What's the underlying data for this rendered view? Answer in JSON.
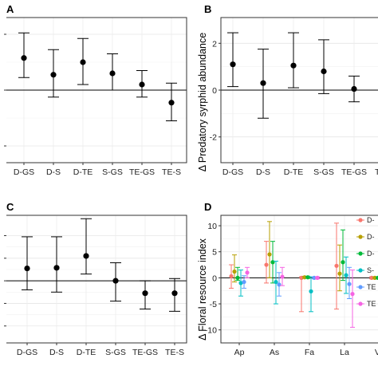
{
  "figure": {
    "panels": [
      "A",
      "B",
      "C",
      "D"
    ]
  },
  "chart_data": [
    {
      "panel": "A",
      "type": "scatter",
      "subtype": "point-with-errorbars",
      "categories": [
        "D-GS",
        "D-S",
        "D-TE",
        "S-GS",
        "TE-GS",
        "TE-S"
      ],
      "values": [
        1.15,
        0.55,
        1.0,
        0.6,
        0.2,
        -0.45
      ],
      "lower": [
        0.45,
        -0.25,
        0.2,
        0.0,
        -0.25,
        -1.1
      ],
      "upper": [
        2.05,
        1.45,
        1.85,
        1.3,
        0.7,
        0.25
      ],
      "ylim": [
        -2.6,
        2.6
      ],
      "yticks": [
        -2,
        0,
        2
      ],
      "reference_line": 0,
      "grid": true
    },
    {
      "panel": "B",
      "type": "scatter",
      "subtype": "point-with-errorbars",
      "categories": [
        "D-GS",
        "D-S",
        "D-TE",
        "S-GS",
        "TE-GS",
        "TE-S"
      ],
      "values": [
        1.1,
        0.3,
        1.05,
        0.8,
        0.05,
        -0.7
      ],
      "lower": [
        0.15,
        -1.2,
        0.1,
        -0.15,
        -0.5,
        -2.2
      ],
      "upper": [
        2.45,
        1.75,
        2.45,
        2.15,
        0.6,
        0.1
      ],
      "ylim": [
        -3.1,
        3.1
      ],
      "yticks": [
        -2,
        0,
        2
      ],
      "ytick_labels": [
        "-2",
        "0",
        "2"
      ],
      "ylabel": "Δ Predatory syrphid abundance",
      "reference_line": 0,
      "grid": true
    },
    {
      "panel": "C",
      "type": "scatter",
      "subtype": "point-with-errorbars",
      "categories": [
        "D-GS",
        "D-S",
        "D-TE",
        "S-GS",
        "TE-GS",
        "TE-S"
      ],
      "values": [
        1.1,
        1.15,
        2.2,
        0.0,
        -1.1,
        -1.1
      ],
      "lower": [
        -0.8,
        -1.0,
        0.6,
        -1.8,
        -2.5,
        -2.7
      ],
      "upper": [
        3.9,
        3.9,
        5.5,
        1.6,
        0.0,
        0.2
      ],
      "ylim": [
        -5.5,
        5.8
      ],
      "yticks": [
        -4,
        -2,
        0,
        2,
        4
      ],
      "reference_line": 0,
      "grid": true
    },
    {
      "panel": "D",
      "type": "scatter",
      "subtype": "point-with-errorbars",
      "ylabel": "Δ Floral resource index",
      "categories": [
        "Ap",
        "As",
        "Fa",
        "La",
        "Ve"
      ],
      "yticks": [
        -10,
        -5,
        0,
        5,
        10
      ],
      "ytick_labels": [
        "-10",
        "-5",
        "0",
        "5",
        "10"
      ],
      "ylim": [
        -12.5,
        12
      ],
      "reference_line": 0,
      "grid": true,
      "legend_position": "right",
      "series": [
        {
          "name": "D-",
          "color": "#F8766D",
          "values": [
            0.3,
            2.5,
            0.0,
            2.3,
            0.0
          ],
          "lower": [
            -2.0,
            -1.0,
            -6.5,
            -6.0,
            -0.2
          ],
          "upper": [
            2.5,
            7.0,
            0.2,
            10.5,
            0.2
          ]
        },
        {
          "name": "D-",
          "color": "#B79F00",
          "values": [
            1.2,
            4.5,
            0.1,
            0.8,
            0.0
          ],
          "lower": [
            -0.8,
            0.0,
            -0.1,
            -2.5,
            -0.2
          ],
          "upper": [
            4.4,
            10.8,
            0.3,
            6.3,
            0.2
          ]
        },
        {
          "name": "D-",
          "color": "#00BA38",
          "values": [
            0.0,
            3.0,
            0.1,
            3.0,
            0.0
          ],
          "lower": [
            -0.5,
            -1.0,
            -0.1,
            -0.5,
            -0.2
          ],
          "upper": [
            2.0,
            7.0,
            0.3,
            9.2,
            0.2
          ]
        },
        {
          "name": "S-",
          "color": "#00BFC4",
          "values": [
            -1.0,
            -0.8,
            -2.6,
            0.5,
            0.0
          ],
          "lower": [
            -3.5,
            -5.0,
            -6.5,
            -3.0,
            -0.2
          ],
          "upper": [
            1.5,
            3.2,
            0.2,
            4.0,
            0.2
          ]
        },
        {
          "name": "TE",
          "color": "#619CFF",
          "values": [
            -0.8,
            -1.3,
            0.0,
            -1.2,
            0.0
          ],
          "lower": [
            -2.0,
            -3.5,
            -0.2,
            -4.0,
            -0.2
          ],
          "upper": [
            0.4,
            1.0,
            0.2,
            2.0,
            0.2
          ]
        },
        {
          "name": "TE",
          "color": "#F564E3",
          "values": [
            1.0,
            0.2,
            0.0,
            -3.1,
            -0.1
          ],
          "lower": [
            0.0,
            -1.5,
            -0.2,
            -9.5,
            -0.3
          ],
          "upper": [
            2.0,
            2.0,
            0.2,
            1.5,
            0.1
          ]
        }
      ]
    }
  ]
}
